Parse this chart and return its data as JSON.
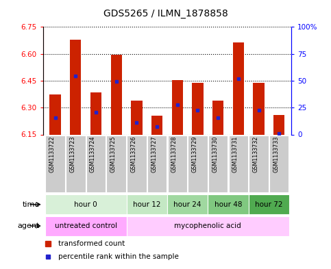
{
  "title": "GDS5265 / ILMN_1878858",
  "samples": [
    "GSM1133722",
    "GSM1133723",
    "GSM1133724",
    "GSM1133725",
    "GSM1133726",
    "GSM1133727",
    "GSM1133728",
    "GSM1133729",
    "GSM1133730",
    "GSM1133731",
    "GSM1133732",
    "GSM1133733"
  ],
  "bar_tops": [
    6.375,
    6.68,
    6.385,
    6.595,
    6.34,
    6.255,
    6.455,
    6.44,
    6.34,
    6.665,
    6.44,
    6.26
  ],
  "bar_bottoms": [
    6.15,
    6.15,
    6.15,
    6.15,
    6.15,
    6.15,
    6.15,
    6.15,
    6.15,
    6.15,
    6.15,
    6.15
  ],
  "blue_dots": [
    6.245,
    6.475,
    6.275,
    6.445,
    6.215,
    6.195,
    6.315,
    6.285,
    6.245,
    6.46,
    6.285,
    6.155
  ],
  "ylim_left": [
    6.15,
    6.75
  ],
  "ylim_right": [
    0,
    100
  ],
  "yticks_left": [
    6.15,
    6.3,
    6.45,
    6.6,
    6.75
  ],
  "yticks_right": [
    0,
    25,
    50,
    75,
    100
  ],
  "ytick_labels_right": [
    "0",
    "25",
    "50",
    "75",
    "100%"
  ],
  "bar_color": "#cc2200",
  "blue_color": "#2222cc",
  "background_color": "#ffffff",
  "time_groups": [
    {
      "label": "hour 0",
      "start": 0,
      "end": 3
    },
    {
      "label": "hour 12",
      "start": 4,
      "end": 5
    },
    {
      "label": "hour 24",
      "start": 6,
      "end": 7
    },
    {
      "label": "hour 48",
      "start": 8,
      "end": 9
    },
    {
      "label": "hour 72",
      "start": 10,
      "end": 11
    }
  ],
  "time_colors": [
    "#d8f0d8",
    "#c4e8c4",
    "#a0d8a0",
    "#80c880",
    "#50aa50"
  ],
  "agent_groups": [
    {
      "label": "untreated control",
      "start": 0,
      "end": 3,
      "color": "#ffaaff"
    },
    {
      "label": "mycophenolic acid",
      "start": 4,
      "end": 11,
      "color": "#ffccff"
    }
  ],
  "sample_bg_color": "#cccccc",
  "legend_red_label": "transformed count",
  "legend_blue_label": "percentile rank within the sample"
}
